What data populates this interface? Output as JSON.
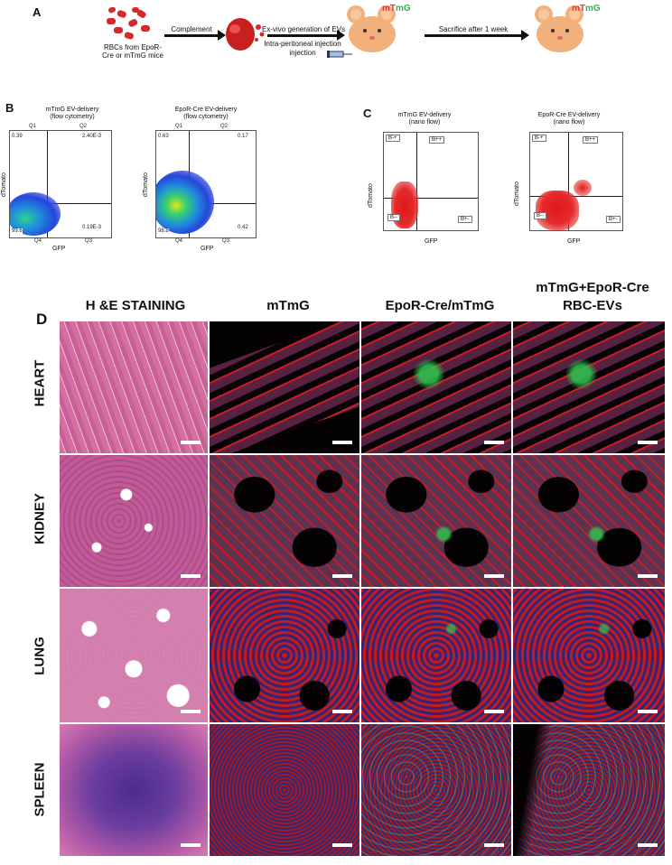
{
  "panels": {
    "a": "A",
    "b": "B",
    "c": "C",
    "d": "D"
  },
  "panelA": {
    "rbc_source": "RBCs from EpoR-Cre or mTmG mice",
    "step1": "Complement",
    "step2": "Ex-vivo generation of EVs",
    "step2_sub": "Intra-peritoneal injection",
    "step3": "Sacrifice after 1 week",
    "mouse_label_red": "mT",
    "mouse_label_green": "mG"
  },
  "panelB": {
    "plots": [
      {
        "title": "mTmG EV-delivery",
        "subtitle": "(flow cytometry)",
        "xlabel": "GFP",
        "ylabel": "dTomato",
        "q1": "Q1",
        "q2": "Q2",
        "q3": "Q3",
        "q4": "Q4",
        "q1_val": "0.39",
        "q2_val": "2.40E-3",
        "q3_val": "0.19E-3",
        "q4_val": "99.6"
      },
      {
        "title": "EpoR-Cre EV-delivery",
        "subtitle": "(flow cytometry)",
        "xlabel": "GFP",
        "ylabel": "dTomato",
        "q1": "Q1",
        "q2": "Q2",
        "q3": "Q3",
        "q4": "Q4",
        "q1_val": "0.63",
        "q2_val": "0.17",
        "q3_val": "0.42",
        "q4_val": "98.8"
      }
    ]
  },
  "panelC": {
    "plots": [
      {
        "title": "mTmG EV-delivery",
        "subtitle": "(nano flow)",
        "xlabel": "GFP",
        "ylabel": "dTomato",
        "g1": "B-+",
        "g2": "B++",
        "g3": "B--",
        "g4": "B+-"
      },
      {
        "title": "EpoR-Cre EV-delivery",
        "subtitle": "(nano flow)",
        "xlabel": "GFP",
        "ylabel": "dTomato",
        "g1": "B-+",
        "g2": "B++",
        "g3": "B--",
        "g4": "B+-"
      }
    ]
  },
  "panelD": {
    "columns": [
      "H &E STAINING",
      "mTmG",
      "EpoR-Cre/mTmG",
      "mTmG+EpoR-Cre",
      "RBC-EVs"
    ],
    "rows": [
      "HEART",
      "KIDNEY",
      "LUNG",
      "SPLEEN"
    ]
  },
  "colors": {
    "tomato": "#e0242a",
    "gfp": "#2db34a",
    "he_pink": "#d76a9e",
    "he_purple": "#6b3a8f",
    "dapi": "#3040c0"
  }
}
